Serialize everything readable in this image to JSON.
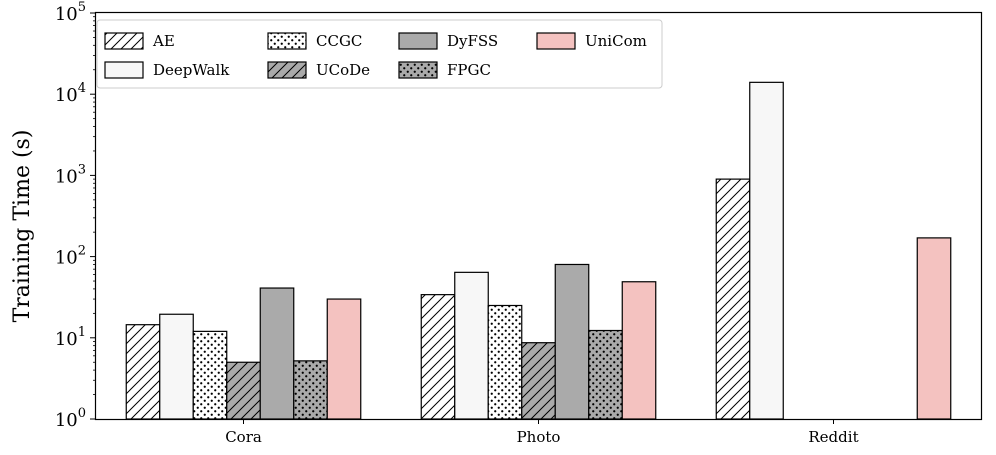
{
  "chart_data": {
    "type": "bar",
    "scale": "log",
    "title": "",
    "xlabel": "",
    "ylabel": "Training Time (s)",
    "ylim": [
      1,
      100000
    ],
    "yticks": [
      {
        "value": 1,
        "base": "10",
        "exp": "0"
      },
      {
        "value": 10,
        "base": "10",
        "exp": "1"
      },
      {
        "value": 100,
        "base": "10",
        "exp": "2"
      },
      {
        "value": 1000,
        "base": "10",
        "exp": "3"
      },
      {
        "value": 10000,
        "base": "10",
        "exp": "4"
      },
      {
        "value": 100000,
        "base": "10",
        "exp": "5"
      }
    ],
    "categories": [
      "Cora",
      "Photo",
      "Reddit"
    ],
    "legend_position": "top-left",
    "series": [
      {
        "name": "AE",
        "color": "#ffffff",
        "pattern": "hatch-diagonal",
        "values": [
          14.5,
          34,
          900
        ]
      },
      {
        "name": "DeepWalk",
        "color": "#f7f7f7",
        "pattern": "none",
        "values": [
          19.5,
          64,
          14000
        ]
      },
      {
        "name": "CCGC",
        "color": "#ffffff",
        "pattern": "dots",
        "values": [
          12,
          25,
          null
        ]
      },
      {
        "name": "UCoDe",
        "color": "#aaaaaa",
        "pattern": "hatch-diagonal",
        "values": [
          5,
          8.7,
          null
        ]
      },
      {
        "name": "DyFSS",
        "color": "#aaaaaa",
        "pattern": "none",
        "values": [
          41,
          80,
          null
        ]
      },
      {
        "name": "FPGC",
        "color": "#aaaaaa",
        "pattern": "dots",
        "values": [
          5.2,
          12.3,
          null
        ]
      },
      {
        "name": "UniCom",
        "color": "#f4c2c0",
        "pattern": "none",
        "values": [
          30,
          49,
          170
        ]
      }
    ]
  }
}
